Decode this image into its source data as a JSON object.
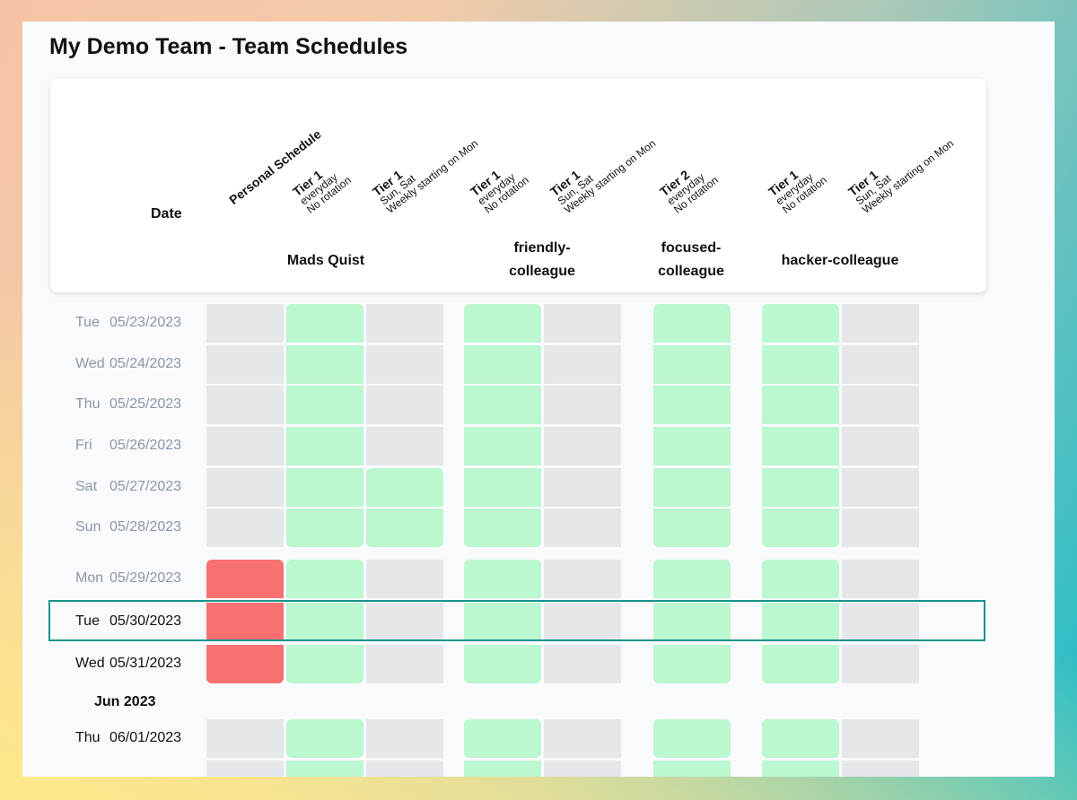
{
  "page": {
    "title": "My Demo Team - Team Schedules"
  },
  "header": {
    "date_label": "Date",
    "personal_schedule": "Personal Schedule",
    "people": [
      "Mads Quist",
      "friendly-\ncolleague",
      "focused-\ncolleague",
      "hacker-colleague"
    ],
    "columns": [
      {
        "tier": "Tier 1",
        "line1": "everyday",
        "line2": "No rotation"
      },
      {
        "tier": "Tier 1",
        "line1": "Sun, Sat",
        "line2": "Weekly starting on Mon"
      },
      {
        "tier": "Tier 1",
        "line1": "everyday",
        "line2": "No rotation"
      },
      {
        "tier": "Tier 1",
        "line1": "Sun, Sat",
        "line2": "Weekly starting on Mon"
      },
      {
        "tier": "Tier 2",
        "line1": "everyday",
        "line2": "No rotation"
      },
      {
        "tier": "Tier 1",
        "line1": "everyday",
        "line2": "No rotation"
      },
      {
        "tier": "Tier 1",
        "line1": "Sun, Sat",
        "line2": "Weekly starting on Mon"
      }
    ]
  },
  "rows": [
    {
      "dow": "Tue",
      "date": "05/23/2023",
      "past": true,
      "cells": [
        "off",
        "on",
        "off",
        "on",
        "off",
        "on",
        "on",
        "off"
      ]
    },
    {
      "dow": "Wed",
      "date": "05/24/2023",
      "past": true,
      "cells": [
        "off",
        "on",
        "off",
        "on",
        "off",
        "on",
        "on",
        "off"
      ]
    },
    {
      "dow": "Thu",
      "date": "05/25/2023",
      "past": true,
      "cells": [
        "off",
        "on",
        "off",
        "on",
        "off",
        "on",
        "on",
        "off"
      ]
    },
    {
      "dow": "Fri",
      "date": "05/26/2023",
      "past": true,
      "cells": [
        "off",
        "on",
        "off",
        "on",
        "off",
        "on",
        "on",
        "off"
      ]
    },
    {
      "dow": "Sat",
      "date": "05/27/2023",
      "past": true,
      "cells": [
        "off",
        "on",
        "on",
        "on",
        "off",
        "on",
        "on",
        "off"
      ]
    },
    {
      "dow": "Sun",
      "date": "05/28/2023",
      "past": true,
      "cells": [
        "off",
        "on",
        "on",
        "on",
        "off",
        "on",
        "on",
        "off"
      ]
    },
    {
      "dow": "Mon",
      "date": "05/29/2023",
      "past": true,
      "cells": [
        "red",
        "on",
        "off",
        "on",
        "off",
        "on",
        "on",
        "off"
      ]
    },
    {
      "dow": "Tue",
      "date": "05/30/2023",
      "past": false,
      "cells": [
        "red",
        "on",
        "off",
        "on",
        "off",
        "on",
        "on",
        "off"
      ]
    },
    {
      "dow": "Wed",
      "date": "05/31/2023",
      "past": false,
      "cells": [
        "red",
        "on",
        "off",
        "on",
        "off",
        "on",
        "on",
        "off"
      ]
    },
    {
      "dow": "Thu",
      "date": "06/01/2023",
      "past": false,
      "cells": [
        "off",
        "on",
        "off",
        "on",
        "off",
        "on",
        "on",
        "off"
      ]
    }
  ],
  "month_label": "Jun 2023",
  "colors": {
    "on": "#bbf7d0",
    "off": "#e5e7eb",
    "absent": "#f87171",
    "highlight": "#17948a"
  }
}
